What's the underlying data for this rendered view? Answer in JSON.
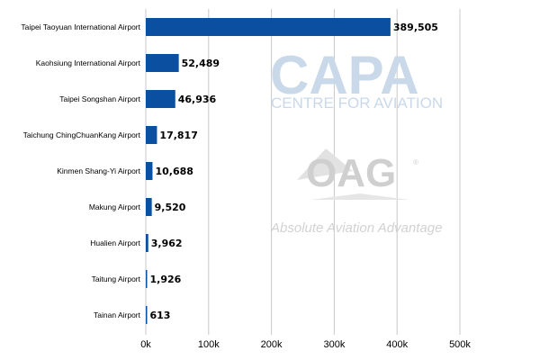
{
  "chart_data": {
    "type": "bar",
    "orientation": "horizontal",
    "title": "",
    "xlabel": "",
    "ylabel": "",
    "categories": [
      "Taipei Taoyuan International Airport",
      "Kaohsiung International Airport",
      "Taipei Songshan Airport",
      "Taichung ChingChuanKang Airport",
      "Kinmen Shang-Yi Airport",
      "Makung Airport",
      "Hualien Airport",
      "Taitung Airport",
      "Tainan Airport"
    ],
    "values": [
      389505,
      52489,
      46936,
      17817,
      10688,
      9520,
      3962,
      1926,
      613
    ],
    "data_labels": [
      "389,505",
      "52,489",
      "46,936",
      "17,817",
      "10,688",
      "9,520",
      "3,962",
      "1,926",
      "613"
    ],
    "xlim": [
      0,
      500000
    ],
    "x_ticks": [
      0,
      100000,
      200000,
      300000,
      400000,
      500000
    ],
    "x_tick_labels": [
      "0k",
      "100k",
      "200k",
      "300k",
      "400k",
      "500k"
    ],
    "grid": "vertical",
    "legend": "none",
    "bar_color": "#0b4fa0",
    "grid_color": "#c8c8c8"
  },
  "watermarks": {
    "capa_logo": "CAPA",
    "capa_subtitle": "CENTRE FOR AVIATION",
    "oag_logo": "OAG",
    "oag_registered": "®",
    "oag_tagline": "Absolute Aviation Advantage"
  }
}
